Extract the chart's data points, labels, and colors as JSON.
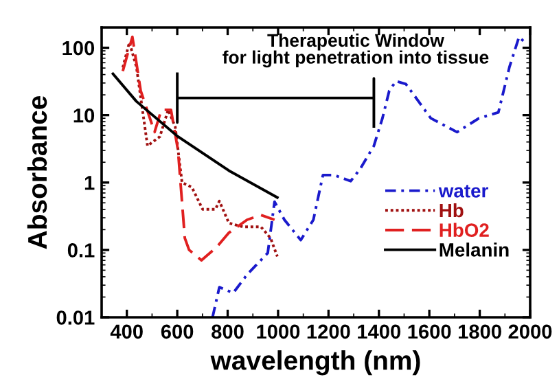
{
  "chart_data": {
    "type": "line",
    "xlabel": "wavelength (nm)",
    "ylabel": "Absorbance",
    "log": "y",
    "xlim": [
      300,
      2000
    ],
    "ylim": [
      0.01,
      200
    ],
    "xticks": [
      400,
      600,
      800,
      1000,
      1200,
      1400,
      1600,
      1800,
      2000
    ],
    "yticks": [
      0.01,
      0.1,
      1,
      10,
      100
    ],
    "grid": false,
    "legend": "lower right",
    "annotations": [
      {
        "text": "Therapeutic Window\nfor light penetration into tissue",
        "x": 990,
        "y": 18
      }
    ],
    "series": [
      {
        "name": "water",
        "color": "#1a1acc",
        "line_style": "dashdot",
        "x": [
          740,
          767,
          822,
          877,
          959,
          986,
          1025,
          1090,
          1140,
          1178,
          1222,
          1288,
          1326,
          1380,
          1414,
          1441,
          1468,
          1507,
          1606,
          1710,
          1797,
          1874,
          1918,
          1956,
          1984
        ],
        "values": [
          0.01,
          0.028,
          0.023,
          0.043,
          0.09,
          0.52,
          0.28,
          0.14,
          0.28,
          1.29,
          1.29,
          1.05,
          1.6,
          3.5,
          9,
          23,
          32,
          29,
          9,
          5.6,
          9,
          11,
          52,
          145,
          115
        ]
      },
      {
        "name": "Hb",
        "color": "#a01010",
        "line_style": "dotted",
        "x": [
          384,
          410,
          438,
          482,
          531,
          564,
          592,
          619,
          658,
          701,
          751,
          767,
          805,
          860,
          932,
          970,
          997
        ],
        "values": [
          51,
          120,
          52,
          3.5,
          4.8,
          12,
          6.7,
          1.0,
          0.85,
          0.4,
          0.4,
          0.53,
          0.25,
          0.22,
          0.22,
          0.15,
          0.08
        ]
      },
      {
        "name": "HbO2",
        "color": "#e02020",
        "line_style": "dashed",
        "x": [
          384,
          422,
          455,
          510,
          537,
          575,
          603,
          630,
          647,
          696,
          756,
          805,
          877,
          932,
          986
        ],
        "values": [
          45,
          145,
          23,
          5.6,
          12,
          12,
          3.0,
          0.15,
          0.1,
          0.07,
          0.11,
          0.18,
          0.28,
          0.33,
          0.28
        ]
      },
      {
        "name": "Melanin",
        "color": "#000000",
        "line_style": "solid",
        "x": [
          345,
          438,
          603,
          805,
          997
        ],
        "values": [
          41,
          16,
          4.8,
          1.5,
          0.6
        ]
      },
      {
        "color": "#000000",
        "line_style": "solid",
        "x": [
          600,
          600,
          600,
          1380,
          1380,
          1380
        ],
        "values": [
          41,
          7.8,
          18,
          18,
          35,
          6.8
        ]
      }
    ]
  }
}
